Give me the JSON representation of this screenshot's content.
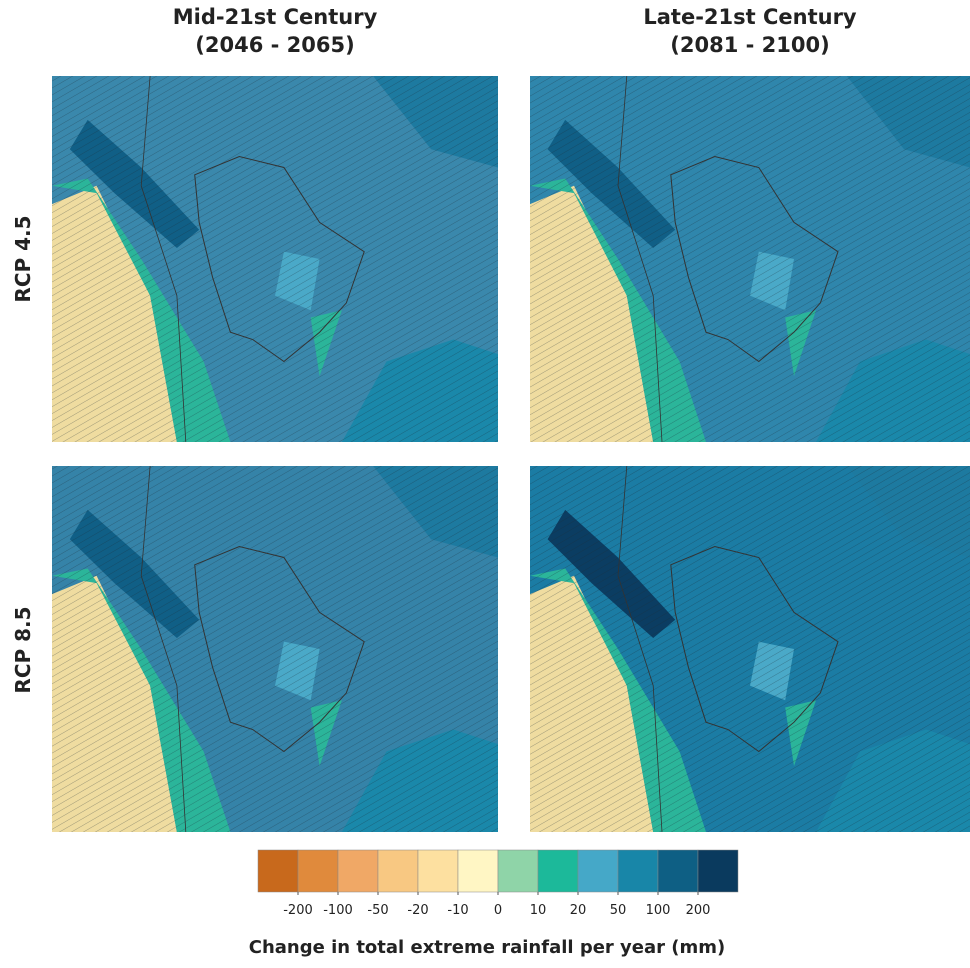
{
  "columns": [
    {
      "title": "Mid-21st Century",
      "period": "(2046 - 2065)"
    },
    {
      "title": "Late-21st Century",
      "period": "(2081 - 2100)"
    }
  ],
  "rows": [
    "RCP 4.5",
    "RCP 8.5"
  ],
  "colorbar": {
    "title": "Change in total extreme rainfall per year (mm)",
    "colors": [
      "#c8691c",
      "#e08a3c",
      "#f0a866",
      "#f8c882",
      "#fde0a0",
      "#fff6c4",
      "#8fd4a8",
      "#1cb99a",
      "#45a8c8",
      "#1886a8",
      "#0e5f84",
      "#0a3a5e"
    ],
    "ticks": [
      -200,
      -100,
      -50,
      -20,
      -10,
      0,
      10,
      20,
      50,
      100,
      200
    ]
  }
}
